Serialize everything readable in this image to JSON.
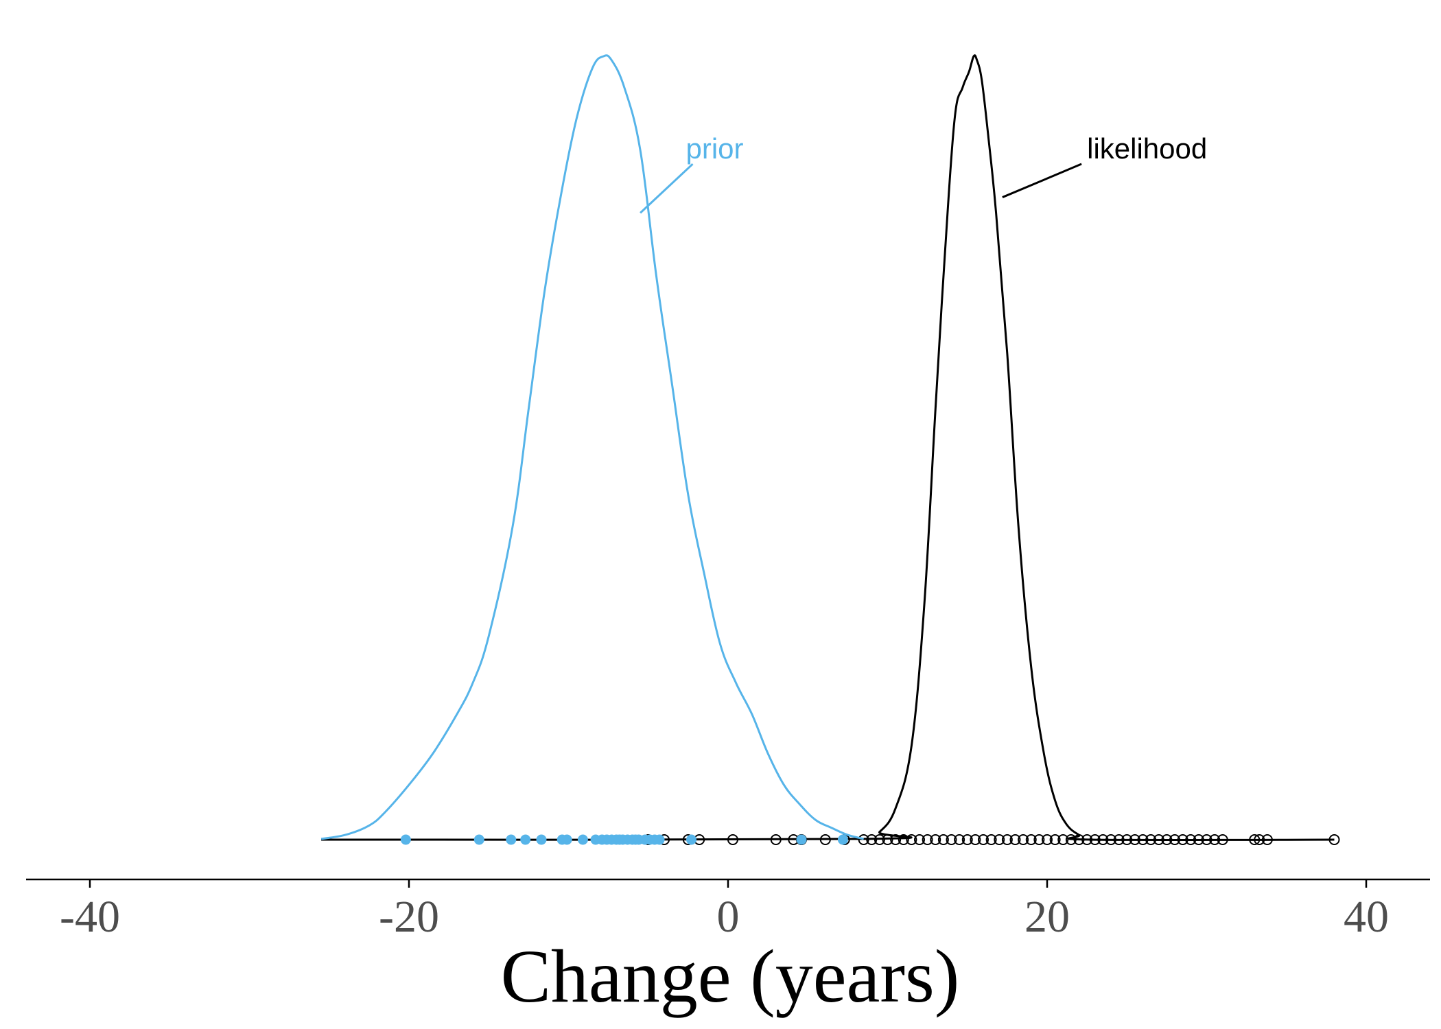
{
  "chart_data": {
    "type": "area",
    "xlabel": "Change (years)",
    "ylabel": "",
    "xlim": [
      -44,
      44
    ],
    "ylim": [
      0,
      1
    ],
    "x_ticks": [
      -40,
      -20,
      0,
      20,
      40
    ],
    "x_tick_labels": [
      "-40",
      "-20",
      "0",
      "20",
      "40"
    ],
    "y_axis_visible": false,
    "grid": false,
    "legend": "none",
    "colors": {
      "prior": "#56b4e9",
      "likelihood": "#000000",
      "axis": "#000000",
      "tick_text": "#4d4d4d"
    },
    "series": [
      {
        "name": "prior",
        "label_text": "prior",
        "label_at": [
          -2,
          0.88
        ],
        "pointer_to": [
          -5.5,
          0.8
        ],
        "x": [
          -25.5,
          -24,
          -22.5,
          -21.5,
          -20,
          -18.5,
          -17,
          -16,
          -15,
          -13.5,
          -12.5,
          -11.5,
          -10.5,
          -9.5,
          -8.5,
          -7.8,
          -7.3,
          -6.5,
          -5.5,
          -4.5,
          -3.5,
          -2.5,
          -1.5,
          -0.5,
          0.5,
          1.5,
          2.5,
          3.5,
          4.5,
          5.5,
          6.5,
          7.5,
          8.5
        ],
        "values": [
          0.001,
          0.006,
          0.018,
          0.035,
          0.07,
          0.11,
          0.16,
          0.2,
          0.26,
          0.4,
          0.55,
          0.7,
          0.82,
          0.92,
          0.985,
          1.0,
          0.995,
          0.96,
          0.88,
          0.72,
          0.58,
          0.44,
          0.34,
          0.25,
          0.2,
          0.16,
          0.11,
          0.07,
          0.045,
          0.025,
          0.015,
          0.006,
          0.001
        ],
        "points": [
          -20.2,
          -15.6,
          -13.6,
          -12.7,
          -11.7,
          -10.4,
          -10.1,
          -9.1,
          -8.3,
          -7.9,
          -7.6,
          -7.3,
          -7.0,
          -6.8,
          -6.6,
          -6.3,
          -6.0,
          -5.8,
          -5.6,
          -5.2,
          -4.9,
          -4.6,
          -4.3,
          -2.3,
          4.6,
          7.2
        ]
      },
      {
        "name": "likelihood",
        "label_text": "likelihood",
        "label_at": [
          22.5,
          0.88
        ],
        "pointer_to": [
          17.2,
          0.82
        ],
        "x": [
          -25.5,
          8.5,
          9.5,
          10.5,
          11.5,
          12.3,
          13.0,
          13.6,
          14.2,
          14.7,
          15.1,
          15.4,
          15.6,
          15.9,
          16.3,
          16.8,
          17.5,
          18.2,
          19.0,
          19.8,
          20.5,
          21.2,
          22.0,
          22.8,
          38.0
        ],
        "values": [
          0.0,
          0.001,
          0.01,
          0.04,
          0.12,
          0.3,
          0.55,
          0.75,
          0.92,
          0.96,
          0.98,
          1.0,
          0.995,
          0.97,
          0.9,
          0.8,
          0.62,
          0.4,
          0.22,
          0.11,
          0.05,
          0.02,
          0.006,
          0.0,
          0.0
        ],
        "points": [
          -5.0,
          -4.0,
          -2.5,
          -1.8,
          0.3,
          3.0,
          4.1,
          4.6,
          6.1,
          7.3,
          8.5,
          9.0,
          9.5,
          10.0,
          10.5,
          11.0,
          11.5,
          12.0,
          12.5,
          13.0,
          13.5,
          14.0,
          14.5,
          15.0,
          15.5,
          16.0,
          16.5,
          17.0,
          17.5,
          18.0,
          18.5,
          19.0,
          19.5,
          20.0,
          20.5,
          21.0,
          21.5,
          22.0,
          22.5,
          23.0,
          23.5,
          24.0,
          24.5,
          25.0,
          25.5,
          26.0,
          26.5,
          27.0,
          27.5,
          28.0,
          28.5,
          29.0,
          29.5,
          30.0,
          30.5,
          31.0,
          33.0,
          33.3,
          33.8,
          38.0
        ]
      }
    ]
  }
}
